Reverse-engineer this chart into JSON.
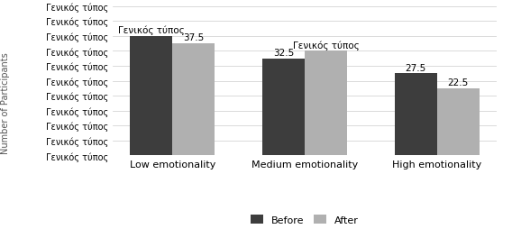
{
  "categories": [
    "Low emotionality",
    "Medium emotionality",
    "High emotionality"
  ],
  "before_values": [
    40,
    32.5,
    27.5
  ],
  "after_values": [
    37.5,
    35,
    22.5
  ],
  "bar_color_before": "#3d3d3d",
  "bar_color_after": "#b0b0b0",
  "ytick_label": "Γενικός τύπος",
  "ytick_values": [
    0,
    5,
    10,
    15,
    20,
    25,
    30,
    35,
    40,
    45,
    50
  ],
  "ylim": [
    0,
    50
  ],
  "bar_width": 0.32,
  "legend_labels": [
    "Before",
    "After"
  ],
  "annotation_fontsize": 7.5,
  "label_fontsize": 8,
  "tick_fontsize": 7,
  "ylabel": "Number of Participants",
  "background_color": "#ffffff",
  "grid_color": "#cccccc",
  "low_before_label": "Γενικός τύπος",
  "low_after_label": "37.5",
  "med_before_label": "32.5",
  "med_after_label": "Γενικός τύπος",
  "high_before_label": "27.5",
  "high_after_label": "22.5"
}
